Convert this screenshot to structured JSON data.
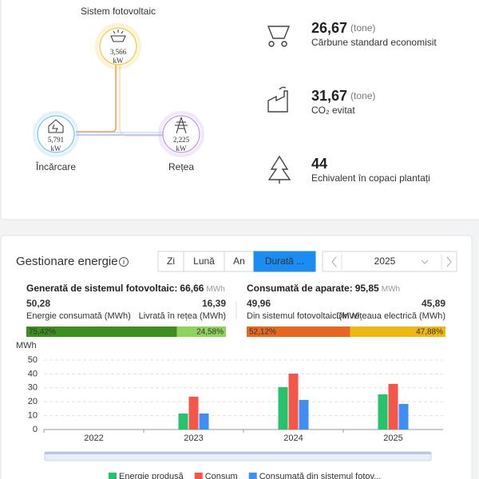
{
  "flow": {
    "title": "Sistem fotovoltaic",
    "pv": {
      "value": "3,566",
      "unit": "kW"
    },
    "load": {
      "value": "5,791",
      "unit": "kW",
      "label": "Încărcare"
    },
    "grid": {
      "value": "2,225",
      "unit": "kW",
      "label": "Rețea"
    }
  },
  "stats": [
    {
      "value": "26,67",
      "unit": "(tone)",
      "label": "Cărbune standard economisit"
    },
    {
      "value": "31,67",
      "unit": "(tone)",
      "label": "CO₂ evitat"
    },
    {
      "value": "44",
      "label": "Echivalent în copaci plantați"
    }
  ],
  "energy": {
    "title": "Gestionare energie",
    "tabs": [
      "Zi",
      "Lună",
      "An",
      "Durată ..."
    ],
    "active_tab": 3,
    "year": "2025",
    "generated": {
      "title": "Generată de sistemul fotovoltaic:",
      "total": "66,66",
      "unit": "MWh",
      "left": {
        "value": "50,28",
        "label": "Energie consumată (MWh)"
      },
      "right": {
        "value": "16,39",
        "label": "Livrată în rețea (MWh)"
      },
      "share": {
        "values": [
          75.42,
          24.58
        ],
        "value_labels": [
          "75,42%",
          "24,58%"
        ],
        "colors": [
          "#3b8f1c",
          "#8ed35a"
        ]
      }
    },
    "consumed": {
      "title": "Consumată de aparate:",
      "total": "95,85",
      "unit": "MWh",
      "left": {
        "value": "49,96",
        "label": "Din sistemul fotovoltaic (MWł"
      },
      "right": {
        "value": "45,89",
        "label": "Din rețeaua electrică (MWh)"
      },
      "share": {
        "values": [
          52.12,
          47.88
        ],
        "value_labels": [
          "52,12%",
          "47,88%"
        ],
        "colors": [
          "#e8691e",
          "#efb70f"
        ]
      }
    }
  },
  "chart_data": {
    "type": "bar",
    "y_label": "MWh",
    "categories": [
      "2022",
      "2023",
      "2024",
      "2025"
    ],
    "series": [
      {
        "name": "Energie produsă",
        "color": "#26c36c",
        "values": [
          null,
          11.5,
          30.5,
          25.3
        ]
      },
      {
        "name": "Consum",
        "color": "#f5564a",
        "values": [
          null,
          23.6,
          40.2,
          32.8
        ]
      },
      {
        "name": "Consumată din sistemul fotov...",
        "color": "#3d8ff6",
        "values": [
          null,
          11.5,
          21.3,
          18.4
        ]
      }
    ],
    "ylim": [
      0,
      50
    ],
    "yticks": [
      0,
      10,
      20,
      30,
      40,
      50
    ],
    "grid": true
  }
}
